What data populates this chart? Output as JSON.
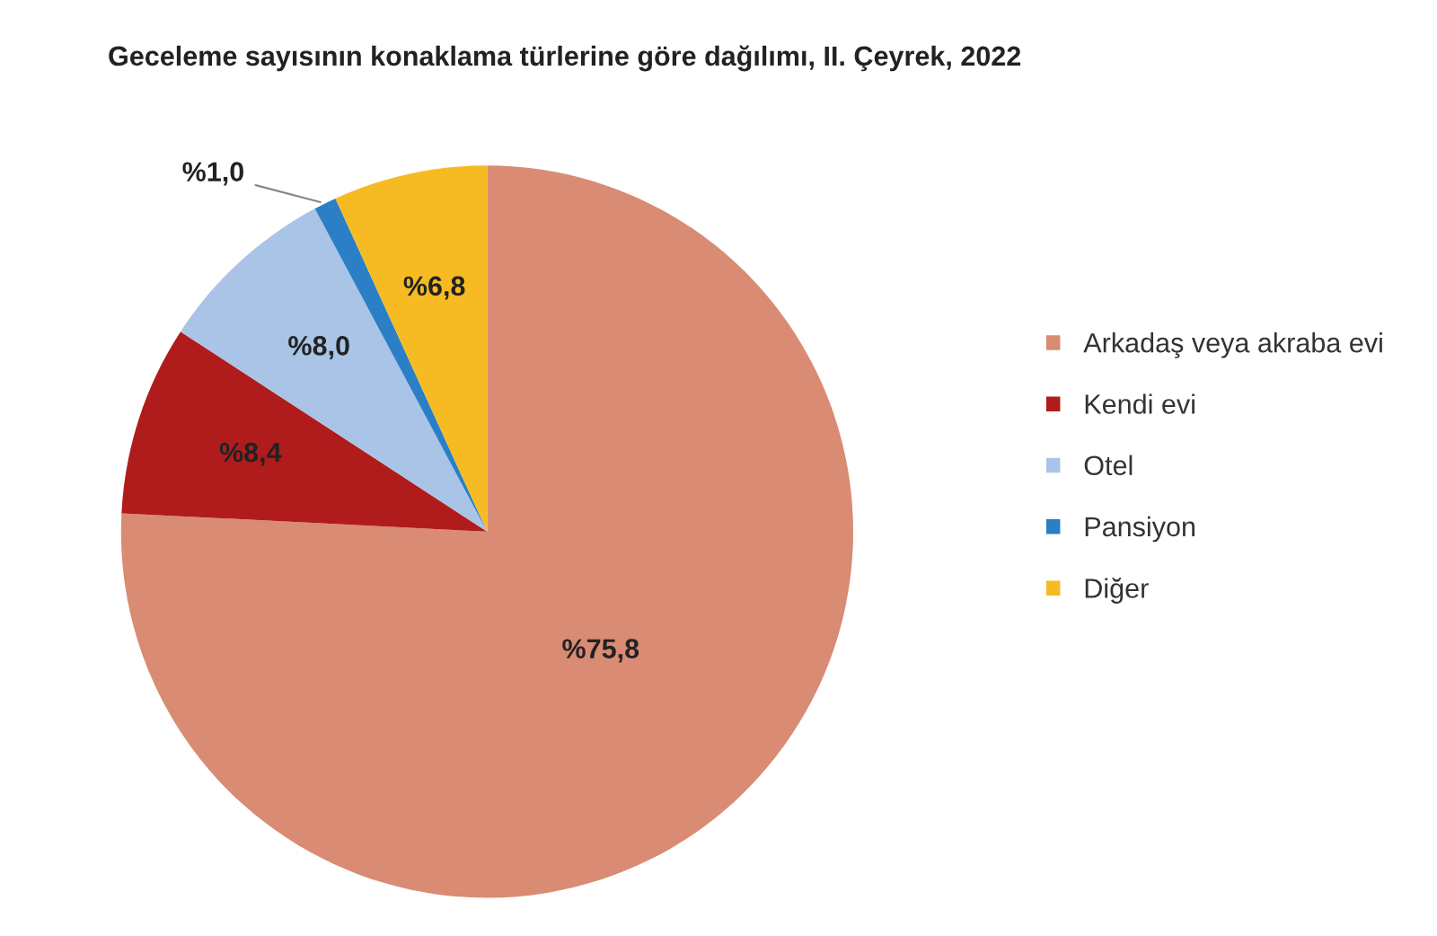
{
  "chart_data": {
    "type": "pie",
    "title": "Geceleme sayısının konaklama türlerine göre dağılımı, II. Çeyrek, 2022",
    "categories": [
      "Arkadaş veya akraba evi",
      "Kendi evi",
      "Otel",
      "Pansiyon",
      "Diğer"
    ],
    "values": [
      75.8,
      8.4,
      8.0,
      1.0,
      6.8
    ],
    "value_labels": [
      "%75,8",
      "%8,4",
      "%8,0",
      "%1,0",
      "%6,8"
    ],
    "colors": [
      "#d98b74",
      "#b01c1c",
      "#a9c4e6",
      "#2a7fc7",
      "#f6bb22"
    ],
    "legend": "right"
  }
}
